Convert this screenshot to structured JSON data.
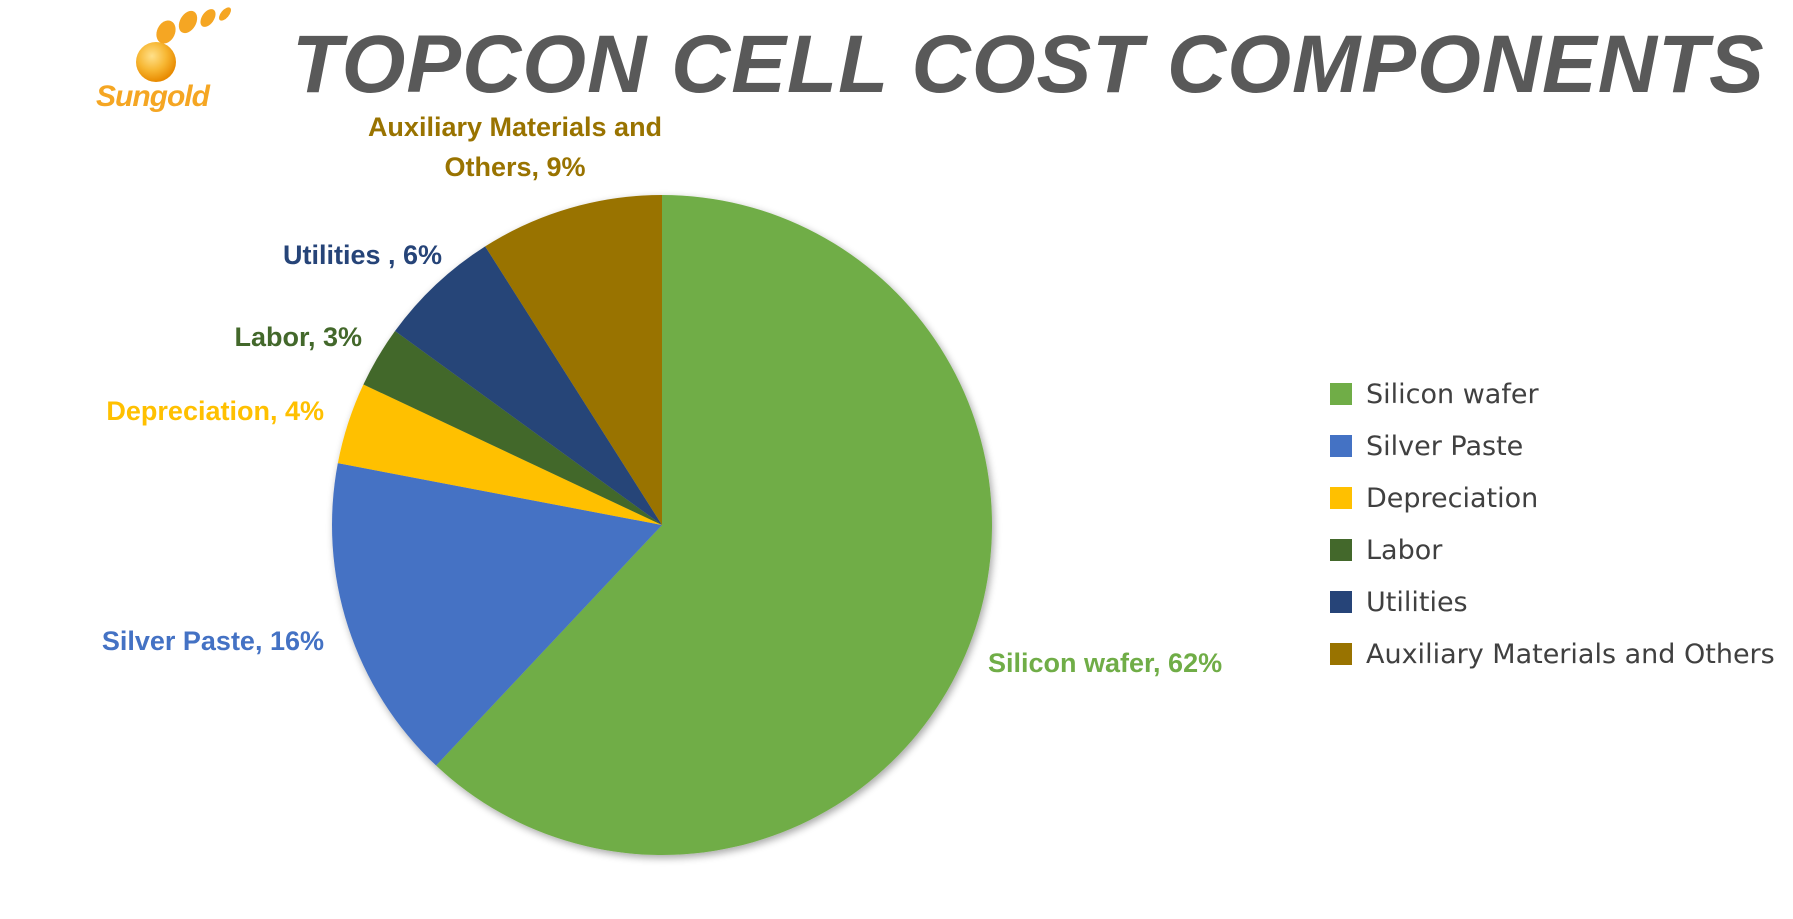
{
  "page": {
    "title": "TOPCON CELL COST COMPONENTS",
    "logo_text": "Sungold"
  },
  "colors": {
    "title": "#595959",
    "logo": "#f5a623",
    "legend_text": "#404040"
  },
  "chart_data": {
    "type": "pie",
    "title": "TOPCON CELL COST COMPONENTS",
    "legend_position": "right",
    "start_angle_deg": 0,
    "direction": "clockwise",
    "slices": [
      {
        "name": "Silicon wafer",
        "value": 62,
        "label": "Silicon wafer, 62%",
        "color": "#70ad47",
        "label_color": "#70ad47"
      },
      {
        "name": "Silver Paste",
        "value": 16,
        "label": "Silver Paste, 16%",
        "color": "#4472c4",
        "label_color": "#4472c4"
      },
      {
        "name": "Depreciation",
        "value": 4,
        "label": "Depreciation, 4%",
        "color": "#ffc000",
        "label_color": "#ffc000"
      },
      {
        "name": "Labor",
        "value": 3,
        "label": "Labor, 3%",
        "color": "#43682b",
        "label_color": "#43682b"
      },
      {
        "name": "Utilities",
        "value": 6,
        "label": "Utilities , 6%",
        "color": "#264478",
        "label_color": "#264478"
      },
      {
        "name": "Auxiliary Materials and Others",
        "value": 9,
        "label_lines": [
          "Auxiliary Materials and",
          "Others, 9%"
        ],
        "color": "#997300",
        "label_color": "#997300"
      }
    ]
  }
}
